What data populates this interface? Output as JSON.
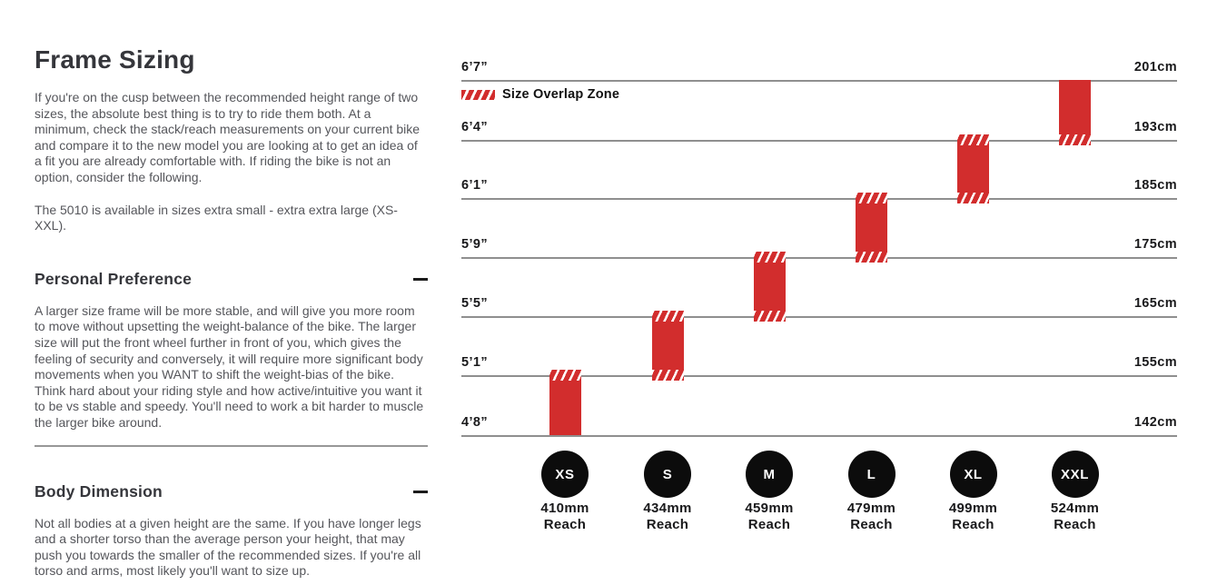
{
  "page": {
    "title": "Frame Sizing",
    "intro": [
      "If you're on the cusp between the recommended height range of two sizes, the absolute best thing is to try to ride them both. At a minimum, check the stack/reach measurements on your current bike and compare it to the new model you are looking at to get an idea of a fit you are already comfortable with. If riding the bike is not an option, consider the following.",
      "The 5010 is available in sizes extra small - extra extra large (XS-XXL)."
    ],
    "sections": [
      {
        "heading": "Personal Preference",
        "state": "expanded",
        "body": "A larger size frame will be more stable, and will give you more room to move without upsetting the weight-balance of the bike. The larger size will put the front wheel further in front of you, which gives the feeling of security and conversely, it will require more significant body movements when you WANT to shift the weight-bias of the bike. Think hard about your riding style and how active/intuitive you want it to be vs stable and speedy. You'll need to work a bit harder to muscle the larger bike around."
      },
      {
        "heading": "Body Dimension",
        "state": "expanded",
        "body": "Not all bodies at a given height are the same. If you have longer legs and a shorter torso than the average person your height, that may push you towards the smaller of the recommended sizes. If you're all torso and arms, most likely you'll want to size up."
      }
    ]
  },
  "chart_data": {
    "type": "bar",
    "subtype": "vertical-range-bars-size-guide",
    "title": "",
    "legend_label": "Size Overlap Zone",
    "legend_position": "top-left",
    "grid": "horizontal lines, equally spaced",
    "reach_word": "Reach",
    "colors": {
      "bar_red": "#d22d2d",
      "circle_black": "#0c0c0c",
      "gridline_gray": "#8f8f8f",
      "label_black": "#19191b"
    },
    "gridlines": [
      {
        "height_ft": "6’7”",
        "height_cm": "201cm"
      },
      {
        "height_ft": "6’4”",
        "height_cm": "193cm"
      },
      {
        "height_ft": "6’1”",
        "height_cm": "185cm"
      },
      {
        "height_ft": "5’9”",
        "height_cm": "175cm"
      },
      {
        "height_ft": "5’5”",
        "height_cm": "165cm"
      },
      {
        "height_ft": "5’1”",
        "height_cm": "155cm"
      },
      {
        "height_ft": "4’8”",
        "height_cm": "142cm"
      }
    ],
    "sizes": [
      {
        "label": "XS",
        "reach": "410mm",
        "top_line": 5,
        "bottom_line": 6,
        "overlap_top": true,
        "overlap_bottom": false,
        "height_range_ft": "4’8”–5’1”",
        "height_range_cm": "142–155cm"
      },
      {
        "label": "S",
        "reach": "434mm",
        "top_line": 4,
        "bottom_line": 5,
        "overlap_top": true,
        "overlap_bottom": true,
        "height_range_ft": "5’1”–5’5”",
        "height_range_cm": "155–165cm"
      },
      {
        "label": "M",
        "reach": "459mm",
        "top_line": 3,
        "bottom_line": 4,
        "overlap_top": true,
        "overlap_bottom": true,
        "height_range_ft": "5’5”–5’9”",
        "height_range_cm": "165–175cm"
      },
      {
        "label": "L",
        "reach": "479mm",
        "top_line": 2,
        "bottom_line": 3,
        "overlap_top": true,
        "overlap_bottom": true,
        "height_range_ft": "5’9”–6’1”",
        "height_range_cm": "175–185cm"
      },
      {
        "label": "XL",
        "reach": "499mm",
        "top_line": 1,
        "bottom_line": 2,
        "overlap_top": true,
        "overlap_bottom": true,
        "height_range_ft": "6’1”–6’4”",
        "height_range_cm": "185–193cm"
      },
      {
        "label": "XXL",
        "reach": "524mm",
        "top_line": 0,
        "bottom_line": 1,
        "overlap_top": false,
        "overlap_bottom": true,
        "height_range_ft": "6’4”–6’7”",
        "height_range_cm": "193–201cm"
      }
    ]
  }
}
